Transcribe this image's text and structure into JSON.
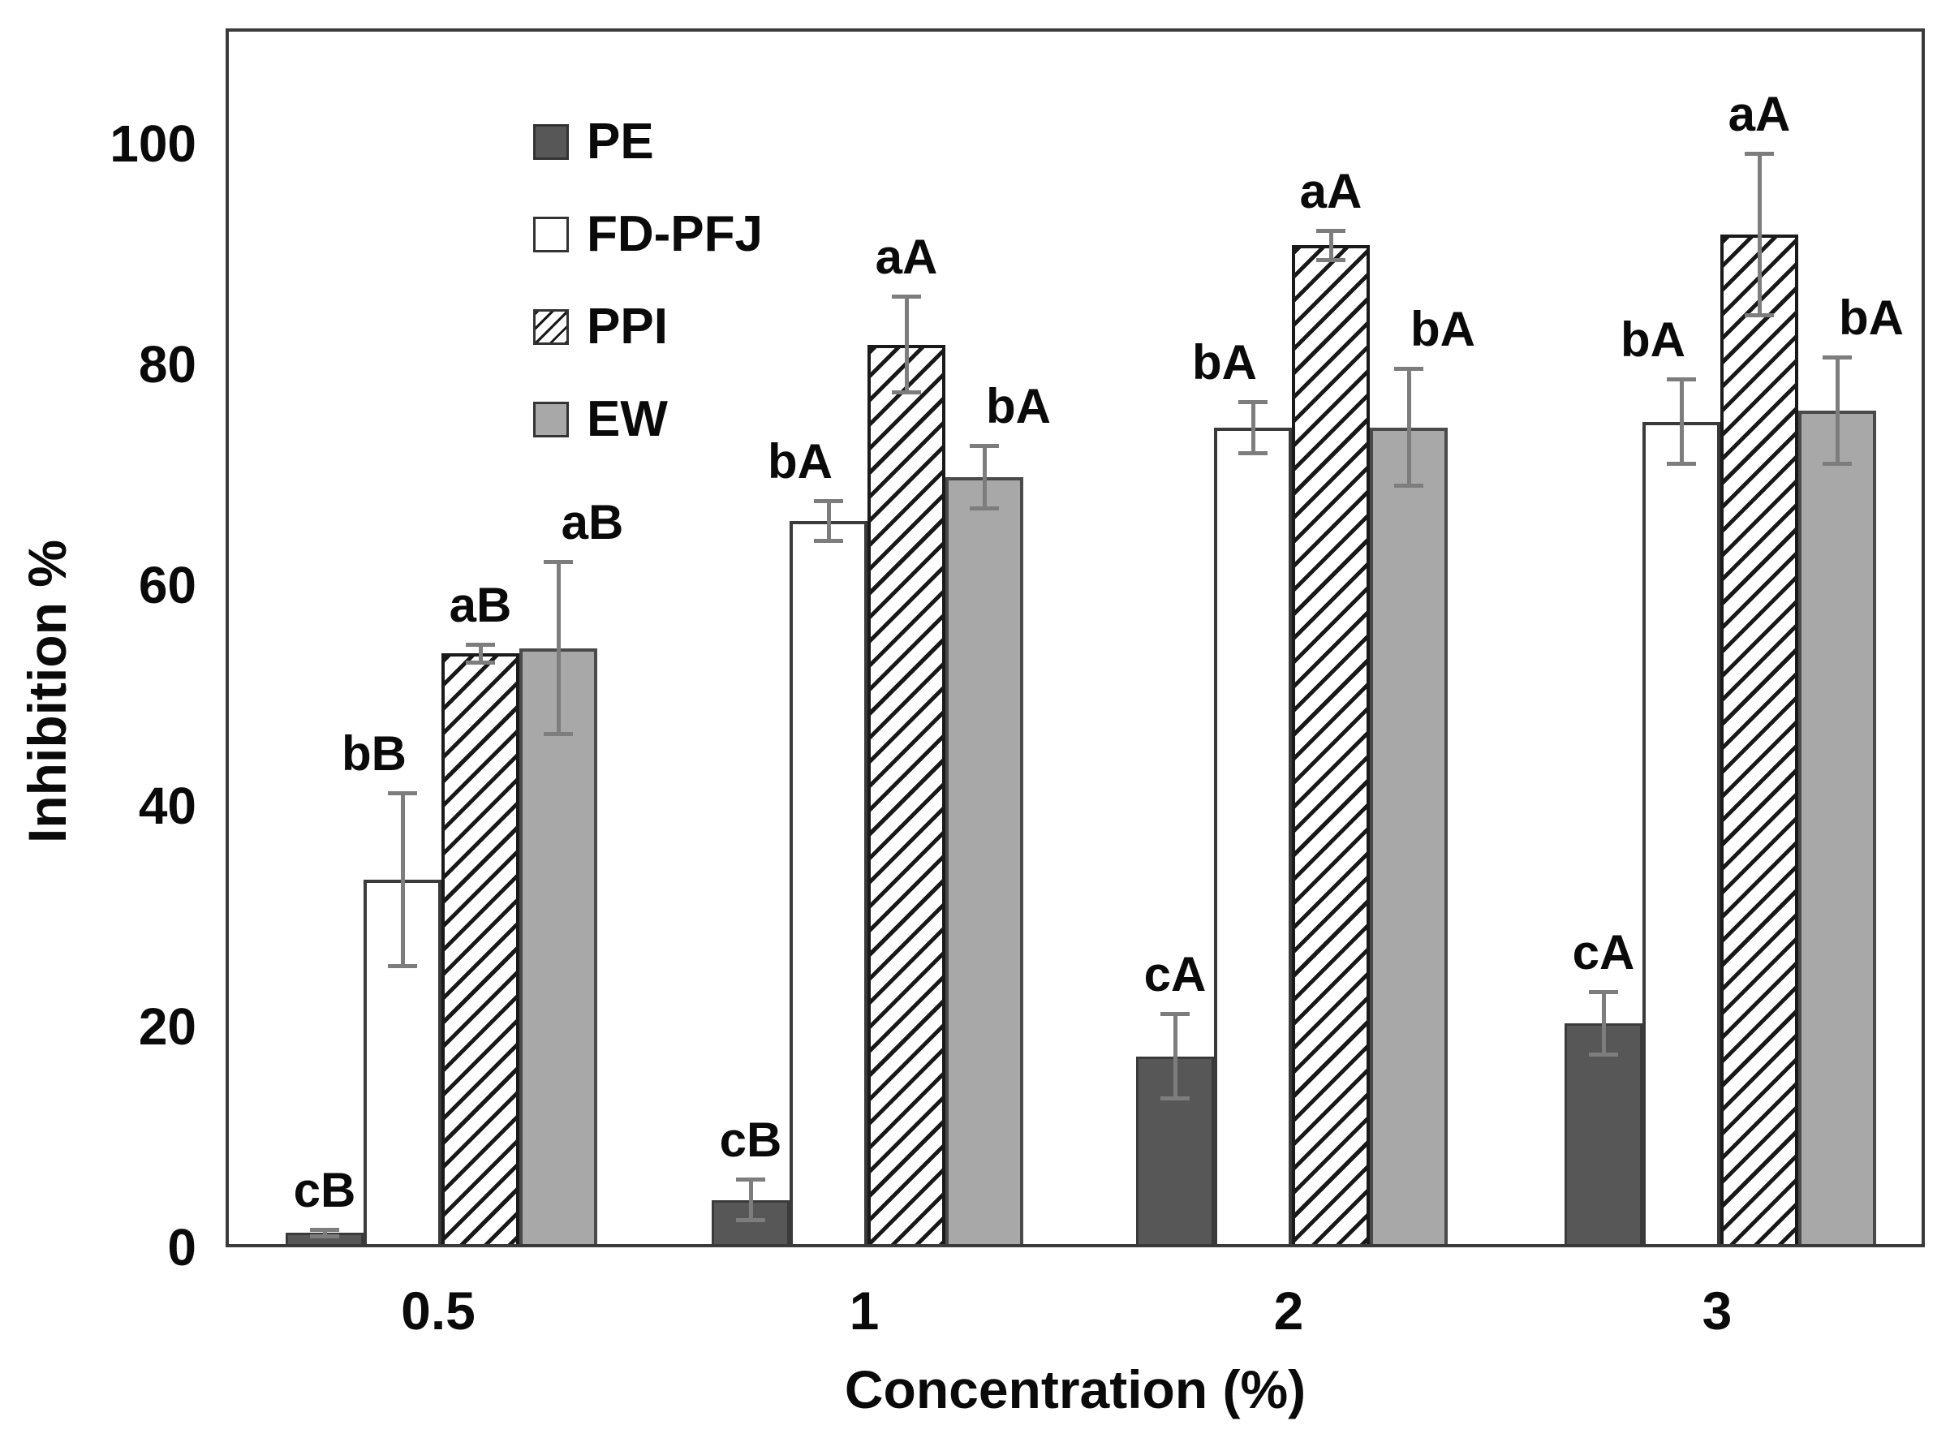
{
  "y_axis": {
    "title": "Inhibition %",
    "tick_labels": [
      "0",
      "20",
      "40",
      "60",
      "80",
      "100"
    ]
  },
  "x_axis": {
    "title": "Concentration (%)",
    "tick_labels": [
      "0.5",
      "1",
      "2",
      "3"
    ]
  },
  "legend": {
    "items": [
      "PE",
      "FD-PFJ",
      "PPI",
      "EW"
    ],
    "position": "top-left-inside-plot"
  },
  "colors": {
    "pe_fill": "#575757",
    "fd_pfj_fill": "#ffffff",
    "ppi_hatch_line": "#181818",
    "ew_fill": "#a8a8a8",
    "frame_border": "#3a3a3a",
    "error_bar": "#7d7d7d",
    "text": "#0a0a0a"
  },
  "chart_data": {
    "type": "bar",
    "title": "",
    "xlabel": "Concentration (%)",
    "ylabel": "Inhibition %",
    "ylim": [
      0,
      110
    ],
    "y_ticks": [
      0,
      20,
      40,
      60,
      80,
      100
    ],
    "grid": false,
    "error_bars": true,
    "legend_position": "top-left inside plot",
    "categories": [
      "0.5",
      "1",
      "2",
      "3"
    ],
    "series": [
      {
        "name": "PE",
        "style": "solid-dark",
        "values": [
          1,
          4,
          17,
          20
        ],
        "errors": [
          0.5,
          2,
          4,
          3
        ],
        "sig_labels": [
          "cB",
          "cB",
          "cA",
          "cA"
        ]
      },
      {
        "name": "FD-PFJ",
        "style": "white",
        "values": [
          33,
          65.5,
          74,
          74.5
        ],
        "errors": [
          8,
          2,
          2.5,
          4
        ],
        "sig_labels": [
          "bB",
          "bA",
          "bA",
          "bA"
        ]
      },
      {
        "name": "PPI",
        "style": "hatched",
        "values": [
          53.5,
          81.5,
          90.5,
          91.5
        ],
        "errors": [
          1,
          4.5,
          1.5,
          7.5
        ],
        "sig_labels": [
          "aB",
          "aA",
          "aA",
          "aA"
        ]
      },
      {
        "name": "EW",
        "style": "solid-gray",
        "values": [
          54,
          69.5,
          74,
          75.5
        ],
        "errors": [
          8,
          3,
          5.5,
          5
        ],
        "sig_labels": [
          "aB",
          "bA",
          "bA",
          "bA"
        ]
      }
    ]
  }
}
